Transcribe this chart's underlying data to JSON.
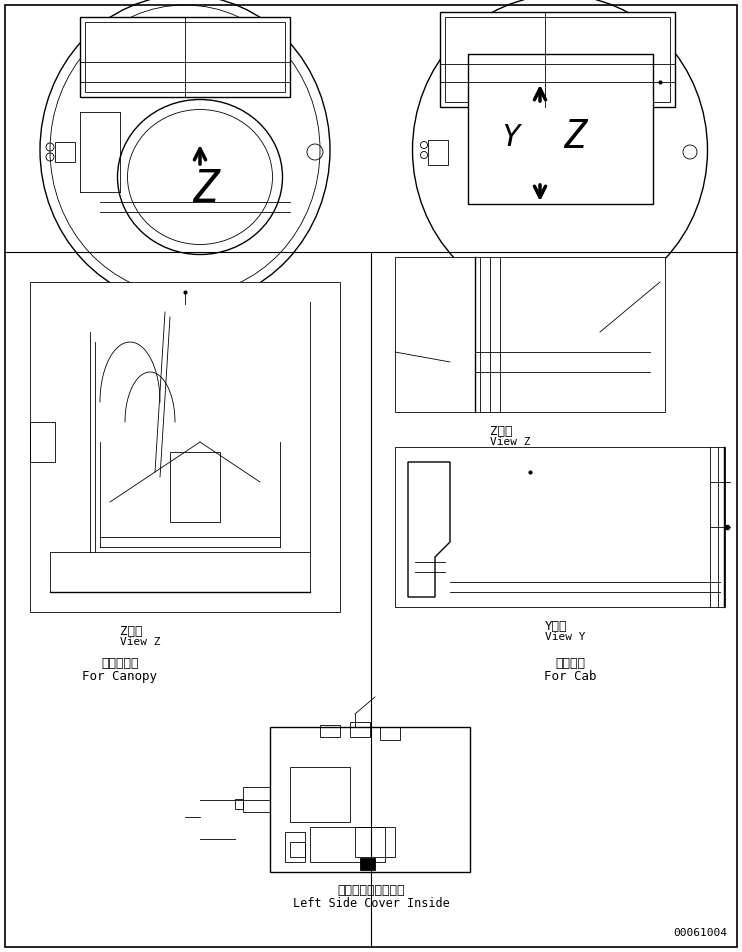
{
  "bg_color": "#ffffff",
  "line_color": "#000000",
  "fig_width": 7.42,
  "fig_height": 9.52,
  "border_color": "#000000",
  "left_panel_label_jp": "キャノピ用",
  "left_panel_label_en": "For Canopy",
  "right_panel_label_jp": "キャブ用",
  "right_panel_label_en": "For Cab",
  "bottom_label_jp": "左サイドカバー内側",
  "bottom_label_en": "Left Side Cover Inside",
  "view_z_label": "Z　視",
  "view_z_en": "View Z",
  "view_y_label": "Y　視",
  "view_y_en": "View Y",
  "part_number": "00061004"
}
